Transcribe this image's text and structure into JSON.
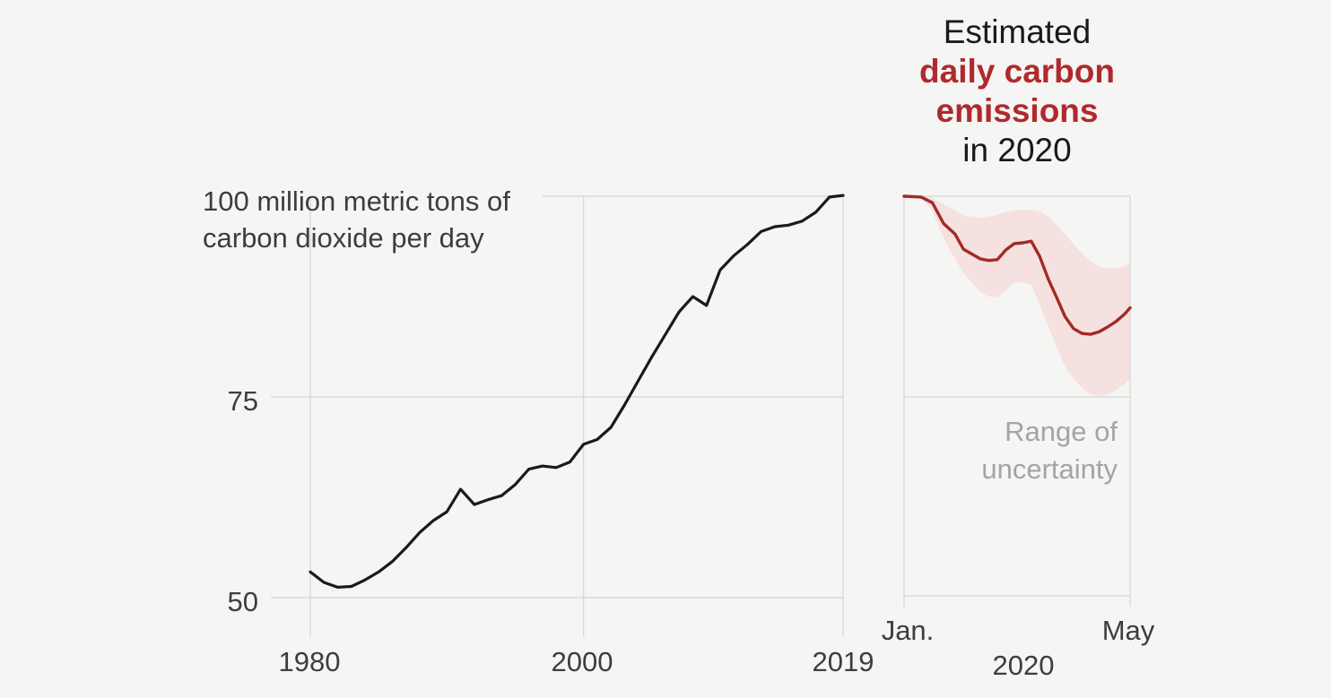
{
  "colors": {
    "background": "#f5f5f3",
    "history_line": "#1a1a1a",
    "estimate_line": "#a32a26",
    "uncertainty_band": "#f5e1e0",
    "grid": "#d9d9d7",
    "text_dark": "#3d3d3d",
    "text_gray": "#a4a4a7",
    "accent_red": "#b0292d"
  },
  "left_chart": {
    "unit_line1": "100 million metric tons of",
    "unit_line2": "carbon dioxide per day",
    "ytick_75": "75",
    "ytick_50": "50",
    "xticks": [
      "1980",
      "2000",
      "2019"
    ]
  },
  "right_chart": {
    "title_line1": "Estimated",
    "title_line2": "daily carbon",
    "title_line3": "emissions",
    "title_line4": "in 2020",
    "xtick_jan": "Jan.",
    "xtick_may": "May",
    "year_label": "2020",
    "annotation_line1": "Range of",
    "annotation_line2": "uncertainty"
  },
  "chart_data": [
    {
      "type": "line",
      "name": "historical-daily-carbon-emissions",
      "ylabel": "100 million metric tons of carbon dioxide per day",
      "yticks": [
        100,
        75,
        50
      ],
      "xticks": [
        1980,
        2000,
        2019
      ],
      "xlim": [
        1980,
        2019
      ],
      "ylim": [
        50,
        100.5
      ],
      "grid": true,
      "x": [
        1980,
        1981,
        1982,
        1983,
        1984,
        1985,
        1986,
        1987,
        1988,
        1989,
        1990,
        1991,
        1992,
        1993,
        1994,
        1995,
        1996,
        1997,
        1998,
        1999,
        2000,
        2001,
        2002,
        2003,
        2004,
        2005,
        2006,
        2007,
        2008,
        2009,
        2010,
        2011,
        2012,
        2013,
        2014,
        2015,
        2016,
        2017,
        2018,
        2019
      ],
      "values": [
        53.2,
        51.9,
        51.3,
        51.4,
        52.2,
        53.2,
        54.5,
        56.2,
        58.1,
        59.6,
        60.7,
        63.5,
        61.6,
        62.2,
        62.7,
        64.1,
        66.0,
        66.4,
        66.2,
        66.9,
        69.1,
        69.7,
        71.2,
        74.0,
        77.0,
        80.0,
        82.8,
        85.6,
        87.5,
        86.4,
        90.8,
        92.6,
        94.0,
        95.6,
        96.2,
        96.4,
        96.9,
        98.0,
        99.9,
        100.1
      ]
    },
    {
      "type": "line+band",
      "name": "estimated-daily-carbon-emissions-2020",
      "title": "Estimated daily carbon emissions in 2020",
      "xticks": [
        "Jan.",
        "May"
      ],
      "xlim_months": [
        0,
        4
      ],
      "ylim": [
        50,
        100.5
      ],
      "annotation": "Range of uncertainty",
      "x_months": [
        0,
        0.3,
        0.5,
        0.7,
        0.9,
        1.05,
        1.2,
        1.35,
        1.5,
        1.65,
        1.8,
        1.95,
        2.1,
        2.25,
        2.4,
        2.55,
        2.7,
        2.85,
        3.0,
        3.15,
        3.3,
        3.45,
        3.6,
        3.75,
        3.9,
        4.0
      ],
      "series": [
        {
          "name": "estimate",
          "values": [
            100,
            99.9,
            99.2,
            96.6,
            95.3,
            93.4,
            92.8,
            92.2,
            92.0,
            92.1,
            93.3,
            94.1,
            94.2,
            94.4,
            92.5,
            89.7,
            87.4,
            85.0,
            83.5,
            82.9,
            82.8,
            83.1,
            83.7,
            84.4,
            85.3,
            86.1
          ]
        },
        {
          "name": "band_upper",
          "values": [
            100,
            100,
            99.8,
            99.0,
            98.2,
            97.6,
            97.4,
            97.3,
            97.4,
            97.7,
            98.0,
            98.2,
            98.3,
            98.3,
            98.1,
            97.5,
            96.4,
            95.3,
            94.0,
            92.9,
            91.9,
            91.2,
            91.0,
            91.0,
            91.3,
            91.5
          ]
        },
        {
          "name": "band_lower",
          "values": [
            100,
            99.8,
            98.2,
            94.8,
            92.2,
            90.5,
            89.2,
            88.1,
            87.5,
            87.4,
            88.3,
            89.2,
            89.3,
            89.0,
            86.5,
            83.8,
            81.2,
            78.8,
            77.2,
            76.1,
            75.3,
            75.1,
            75.3,
            75.8,
            76.6,
            77.2
          ]
        }
      ]
    }
  ]
}
